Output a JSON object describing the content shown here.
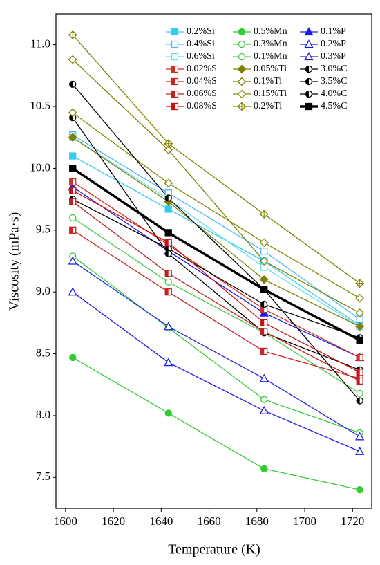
{
  "chart_data": {
    "type": "line",
    "x_label": "Temperature (K)",
    "y_label": "Viscosity (mPa·s)",
    "x": [
      1603,
      1643,
      1683,
      1723
    ],
    "xlim": [
      1596,
      1728
    ],
    "xticks": [
      1600,
      1620,
      1640,
      1660,
      1680,
      1700,
      1720
    ],
    "ylim": [
      7.25,
      11.25
    ],
    "yticks": [
      7.5,
      {
        "value": 8,
        "label": "8.0"
      },
      8.5,
      {
        "value": 9,
        "label": "9.0"
      },
      9.5,
      {
        "value": 10,
        "label": "10.0"
      },
      10.5,
      {
        "value": 11,
        "label": "11.0"
      }
    ],
    "legend": "upper right",
    "series": [
      {
        "name": "0.2%Si",
        "color": "#33ccee",
        "marker": "square",
        "fill": "full",
        "values": [
          10.1,
          9.67,
          9.25,
          8.73
        ]
      },
      {
        "name": "0.5%Mn",
        "color": "#33cc33",
        "marker": "circle",
        "fill": "full",
        "values": [
          8.47,
          8.02,
          7.57,
          7.4
        ]
      },
      {
        "name": "0.1%P",
        "color": "#1a1aee",
        "marker": "triangle",
        "fill": "full",
        "values": [
          9.85,
          9.33,
          8.83,
          8.47
        ]
      },
      {
        "name": "0.4%Si",
        "color": "#44bbff",
        "marker": "square",
        "fill": "none",
        "values": [
          10.27,
          9.8,
          9.33,
          8.78
        ]
      },
      {
        "name": "0.3%Mn",
        "color": "#33cc33",
        "marker": "circle",
        "fill": "none",
        "values": [
          9.29,
          8.71,
          8.13,
          7.86
        ]
      },
      {
        "name": "0.2%P",
        "color": "#1a1aee",
        "marker": "triangle",
        "fill": "none",
        "values": [
          9.0,
          8.43,
          8.04,
          7.71
        ]
      },
      {
        "name": "0.6%Si",
        "color": "#66ddee",
        "marker": "square",
        "fill": "none",
        "values": [
          10.25,
          9.75,
          9.2,
          8.72
        ]
      },
      {
        "name": "0.1%Mn",
        "color": "#44cc44",
        "marker": "circle",
        "fill": "none",
        "values": [
          9.6,
          9.08,
          8.67,
          8.18
        ]
      },
      {
        "name": "0.3%P",
        "color": "#2222dd",
        "marker": "triangle",
        "fill": "none",
        "values": [
          9.25,
          8.72,
          8.3,
          7.83
        ]
      },
      {
        "name": "0.02%S",
        "color": "#cc3322",
        "marker": "square",
        "fill": "half",
        "values": [
          9.89,
          9.38,
          8.86,
          8.47
        ]
      },
      {
        "name": "0.05%Ti",
        "color": "#808000",
        "marker": "diamond",
        "fill": "full",
        "values": [
          10.25,
          9.73,
          9.1,
          8.72
        ]
      },
      {
        "name": "3.0%C",
        "color": "#000000",
        "marker": "circle",
        "fill": "half",
        "values": [
          9.75,
          9.35,
          8.9,
          8.63
        ]
      },
      {
        "name": "0.04%S",
        "color": "#cc2222",
        "marker": "square",
        "fill": "half",
        "values": [
          9.5,
          9.0,
          8.52,
          8.3
        ]
      },
      {
        "name": "0.1%Ti",
        "color": "#808000",
        "marker": "diamond",
        "fill": "none",
        "values": [
          10.88,
          10.15,
          9.25,
          8.83
        ]
      },
      {
        "name": "3.5%C",
        "color": "#000000",
        "marker": "circle",
        "fill": "half",
        "values": [
          10.41,
          9.31,
          8.67,
          8.37
        ]
      },
      {
        "name": "0.06%S",
        "color": "#bb2222",
        "marker": "square",
        "fill": "half",
        "values": [
          9.73,
          9.15,
          8.68,
          8.28
        ]
      },
      {
        "name": "0.15%Ti",
        "color": "#888800",
        "marker": "diamond",
        "fill": "none",
        "values": [
          10.45,
          9.88,
          9.4,
          8.95
        ]
      },
      {
        "name": "4.0%C",
        "color": "#000000",
        "marker": "circle",
        "fill": "half",
        "values": [
          10.68,
          9.76,
          9.02,
          8.12
        ]
      },
      {
        "name": "0.08%S",
        "color": "#cc1111",
        "marker": "square",
        "fill": "half",
        "values": [
          9.82,
          9.4,
          8.75,
          8.35
        ]
      },
      {
        "name": "0.2%Ti",
        "color": "#808000",
        "marker": "cross-diamond",
        "fill": "none",
        "values": [
          11.08,
          10.2,
          9.63,
          9.07
        ]
      },
      {
        "name": "4.5%C",
        "color": "#000000",
        "marker": "square",
        "fill": "full",
        "width": 3.5,
        "values": [
          10.0,
          9.48,
          9.02,
          8.61
        ]
      }
    ]
  }
}
